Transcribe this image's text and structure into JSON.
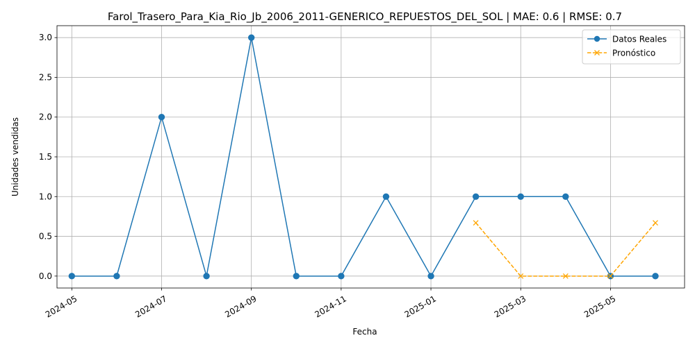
{
  "chart_data": {
    "type": "line",
    "title": "Farol_Trasero_Para_Kia_Rio_Jb_2006_2011-GENERICO_REPUESTOS_DEL_SOL | MAE: 0.6 | RMSE: 0.7",
    "xlabel": "Fecha",
    "ylabel": "Unidades vendidas",
    "ylim": [
      -0.15,
      3.15
    ],
    "yticks": [
      0.0,
      0.5,
      1.0,
      1.5,
      2.0,
      2.5,
      3.0
    ],
    "ytick_labels": [
      "0.0",
      "0.5",
      "1.0",
      "1.5",
      "2.0",
      "2.5",
      "3.0"
    ],
    "xlim_month_index": [
      -0.33,
      13.65
    ],
    "xticks": [
      0,
      2,
      4,
      6,
      8,
      10,
      12
    ],
    "xtick_labels": [
      "2024-05",
      "2024-07",
      "2024-09",
      "2024-11",
      "2025-01",
      "2025-03",
      "2025-05"
    ],
    "grid": true,
    "legend_position": "top-right",
    "series": [
      {
        "name": "Datos Reales",
        "color": "#1f77b4",
        "marker": "circle",
        "linestyle": "solid",
        "x": [
          "2024-04-30",
          "2024-05-31",
          "2024-06-30",
          "2024-07-31",
          "2024-08-31",
          "2024-09-30",
          "2024-10-31",
          "2024-11-30",
          "2024-12-31",
          "2025-01-31",
          "2025-02-28",
          "2025-03-31",
          "2025-04-30",
          "2025-05-31"
        ],
        "x_index": [
          0,
          1,
          2,
          3,
          4,
          5,
          6,
          7,
          8,
          9,
          10,
          11,
          12,
          13
        ],
        "values": [
          0,
          0,
          2,
          0,
          3,
          0,
          0,
          1,
          0,
          1,
          1,
          1,
          0,
          0
        ]
      },
      {
        "name": "Pronóstico",
        "color": "#ffa500",
        "marker": "x",
        "linestyle": "dashed",
        "x": [
          "2025-01-31",
          "2025-02-28",
          "2025-03-31",
          "2025-04-30",
          "2025-05-31"
        ],
        "x_index": [
          9,
          10,
          11,
          12,
          13
        ],
        "values": [
          0.67,
          0,
          0,
          0,
          0.67
        ]
      }
    ]
  }
}
